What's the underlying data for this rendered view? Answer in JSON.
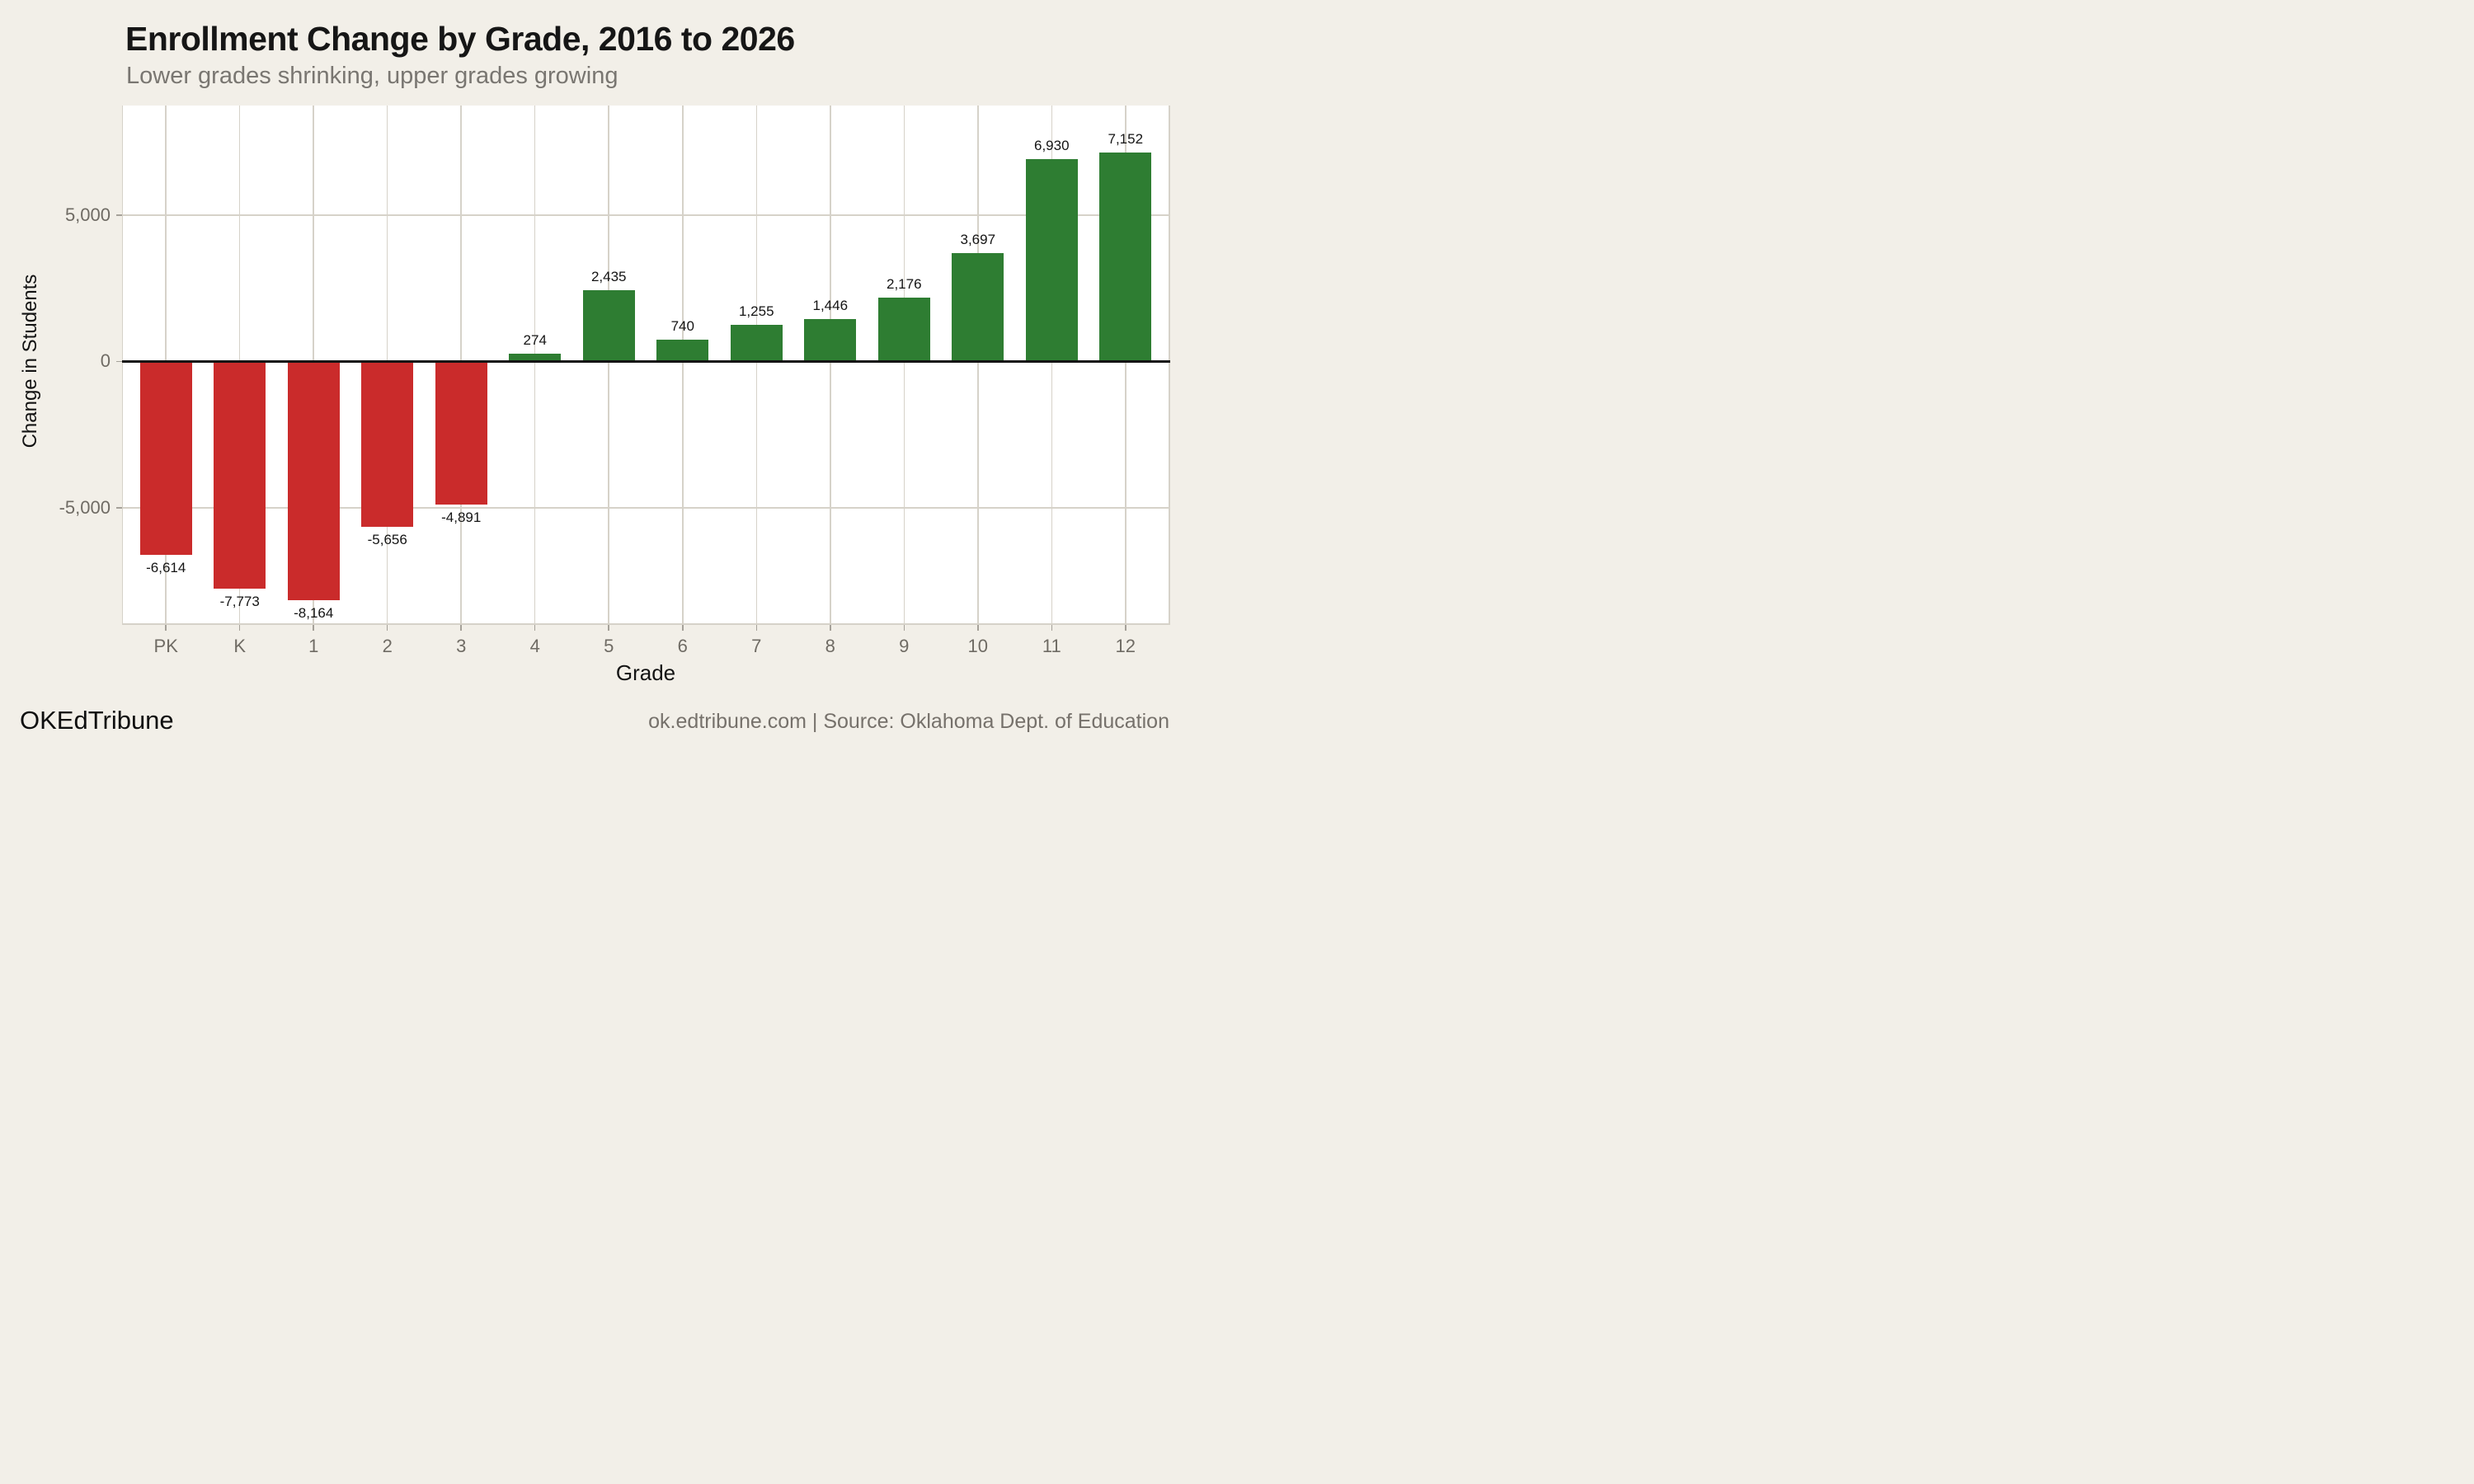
{
  "header": {
    "title": "Enrollment Change by Grade, 2016 to 2026",
    "subtitle": "Lower grades shrinking, upper grades growing"
  },
  "footer": {
    "brand": "OKEdTribune",
    "source": "ok.edtribune.com | Source: Oklahoma Dept. of Education"
  },
  "colors": {
    "background": "#f2efe8",
    "panel": "#ffffff",
    "gridline": "#d6d2c9",
    "tick": "#a5a199",
    "axis_text": "#6f6b64",
    "title_text": "#161616",
    "subtitle_text": "#797671",
    "value_label_text": "#141414",
    "zero_line": "#141414",
    "positive_bar": "#2e7d32",
    "negative_bar": "#ca2b2b",
    "footer_right_text": "#76716b"
  },
  "chart_data": {
    "type": "bar",
    "title": "Enrollment Change by Grade, 2016 to 2026",
    "subtitle": "Lower grades shrinking, upper grades growing",
    "xlabel": "Grade",
    "ylabel": "Change in Students",
    "categories": [
      "PK",
      "K",
      "1",
      "2",
      "3",
      "4",
      "5",
      "6",
      "7",
      "8",
      "9",
      "10",
      "11",
      "12"
    ],
    "values": [
      -6614,
      -7773,
      -8164,
      -5656,
      -4891,
      274,
      2435,
      740,
      1255,
      1446,
      2176,
      3697,
      6930,
      7152
    ],
    "value_labels": [
      "-6,614",
      "-7,773",
      "-8,164",
      "-5,656",
      "-4,891",
      "274",
      "2,435",
      "740",
      "1,255",
      "1,446",
      "2,176",
      "3,697",
      "6,930",
      "7,152"
    ],
    "yticks": [
      {
        "value": 5000,
        "label": "5,000"
      },
      {
        "value": 0,
        "label": "0"
      },
      {
        "value": -5000,
        "label": "-5,000"
      }
    ],
    "ylim": [
      -8950,
      8750
    ],
    "grid": {
      "vertical": "one line per category center",
      "horizontal": "at each y tick"
    },
    "legend": "none",
    "color_rule": "negative values red, positive values green"
  }
}
